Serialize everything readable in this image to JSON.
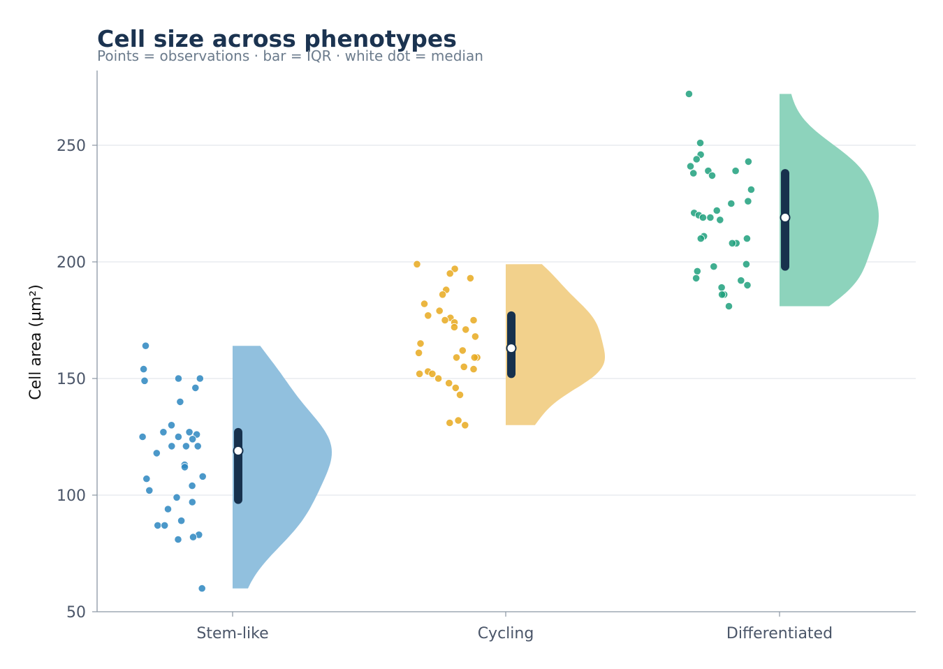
{
  "chart_data": {
    "type": "raincloud",
    "title": "Cell size across phenotypes",
    "subtitle": "Points = observations · bar = IQR · white dot = median",
    "xlabel": "",
    "ylabel": "Cell area (µm²)",
    "ylim": [
      50,
      280
    ],
    "yticks": [
      50,
      100,
      150,
      200,
      250
    ],
    "grid": "horizontal",
    "categories": [
      "Stem-like",
      "Cycling",
      "Differentiated"
    ],
    "colors": {
      "Stem-like": "#2b86c0",
      "Cycling": "#e8a91e",
      "Differentiated": "#1fa07c"
    },
    "violin_colors": {
      "Stem-like": "#8fbfdd",
      "Cycling": "#f2d08a",
      "Differentiated": "#8bd2bb"
    },
    "series": [
      {
        "category": "Stem-like",
        "min": 60,
        "max": 164,
        "q1": 98,
        "median": 119,
        "q3": 127,
        "points": [
          164,
          154,
          150,
          150,
          149,
          146,
          140,
          130,
          127,
          127,
          126,
          125,
          125,
          124,
          121,
          121,
          121,
          118,
          113,
          112,
          108,
          107,
          104,
          102,
          99,
          97,
          94,
          89,
          87,
          87,
          83,
          82,
          81,
          60
        ]
      },
      {
        "category": "Cycling",
        "min": 130,
        "max": 199,
        "q1": 152,
        "median": 163,
        "q3": 177,
        "points": [
          199,
          197,
          195,
          193,
          188,
          186,
          182,
          179,
          177,
          176,
          175,
          175,
          174,
          172,
          171,
          168,
          165,
          162,
          161,
          159,
          159,
          159,
          155,
          154,
          153,
          152,
          152,
          150,
          148,
          146,
          143,
          132,
          131,
          130
        ]
      },
      {
        "category": "Differentiated",
        "min": 181,
        "max": 272,
        "q1": 198,
        "median": 219,
        "q3": 238,
        "points": [
          272,
          251,
          246,
          244,
          243,
          241,
          239,
          239,
          238,
          237,
          231,
          226,
          225,
          222,
          221,
          220,
          219,
          219,
          218,
          211,
          210,
          210,
          208,
          208,
          199,
          198,
          196,
          193,
          192,
          190,
          189,
          186,
          186,
          181
        ]
      }
    ]
  }
}
